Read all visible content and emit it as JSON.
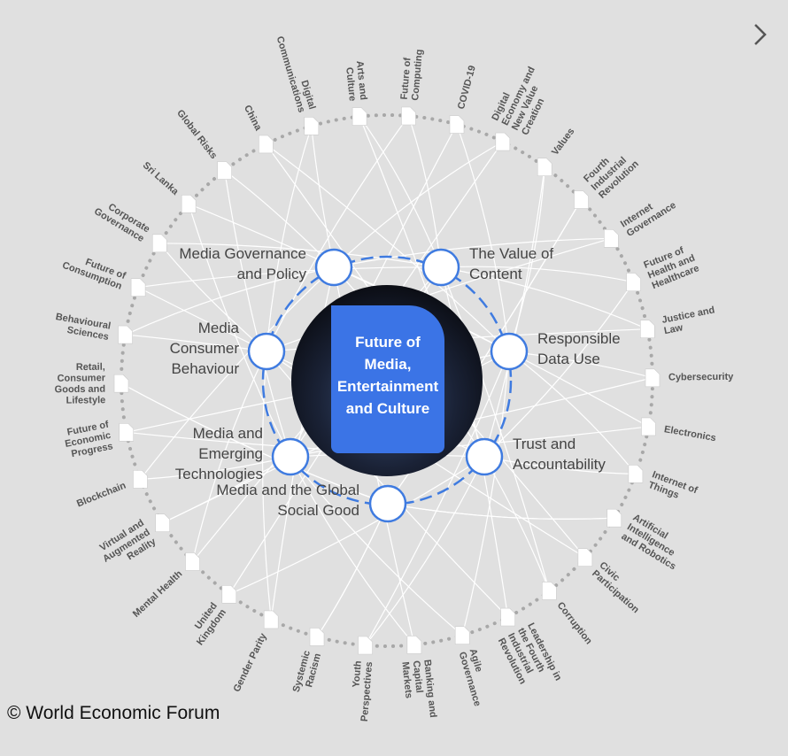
{
  "center": {
    "lines": [
      "Future of",
      "Media,",
      "Entertainment",
      "and Culture"
    ]
  },
  "key_issues": [
    {
      "lines": [
        "Media Governance",
        "and Policy"
      ]
    },
    {
      "lines": [
        "The Value of",
        "Content"
      ]
    },
    {
      "lines": [
        "Media",
        "Consumer",
        "Behaviour"
      ]
    },
    {
      "lines": [
        "Responsible",
        "Data Use"
      ]
    },
    {
      "lines": [
        "Media and",
        "Emerging",
        "Technologies"
      ]
    },
    {
      "lines": [
        "Trust and",
        "Accountability"
      ]
    },
    {
      "lines": [
        "Media and the Global",
        "Social Good"
      ]
    }
  ],
  "topics": [
    {
      "lines": [
        "Digital",
        "Communications"
      ]
    },
    {
      "lines": [
        "Arts and",
        "Culture"
      ]
    },
    {
      "lines": [
        "Future of",
        "Computing"
      ]
    },
    {
      "lines": [
        "COVID-19"
      ]
    },
    {
      "lines": [
        "Digital",
        "Economy and",
        "New Value",
        "Creation"
      ]
    },
    {
      "lines": [
        "Values"
      ]
    },
    {
      "lines": [
        "Fourth",
        "Industrial",
        "Revolution"
      ]
    },
    {
      "lines": [
        "Internet",
        "Governance"
      ]
    },
    {
      "lines": [
        "Future of",
        "Health and",
        "Healthcare"
      ]
    },
    {
      "lines": [
        "Justice and",
        "Law"
      ]
    },
    {
      "lines": [
        "Cybersecurity"
      ]
    },
    {
      "lines": [
        "Electronics"
      ]
    },
    {
      "lines": [
        "Internet of",
        "Things"
      ]
    },
    {
      "lines": [
        "Artificial",
        "Intelligence",
        "and Robotics"
      ]
    },
    {
      "lines": [
        "Civic",
        "Participation"
      ]
    },
    {
      "lines": [
        "Corruption"
      ]
    },
    {
      "lines": [
        "Leadership in",
        "the Fourth",
        "Industrial",
        "Revolution"
      ]
    },
    {
      "lines": [
        "Agile",
        "Governance"
      ]
    },
    {
      "lines": [
        "Banking and",
        "Capital",
        "Markets"
      ]
    },
    {
      "lines": [
        "Youth",
        "Perspectives"
      ]
    },
    {
      "lines": [
        "Systemic",
        "Racism"
      ]
    },
    {
      "lines": [
        "Gender Parity"
      ]
    },
    {
      "lines": [
        "United",
        "Kingdom"
      ]
    },
    {
      "lines": [
        "Mental Health"
      ]
    },
    {
      "lines": [
        "Virtual and",
        "Augmented",
        "Reality"
      ]
    },
    {
      "lines": [
        "Blockchain"
      ]
    },
    {
      "lines": [
        "Future of",
        "Economic",
        "Progress"
      ]
    },
    {
      "lines": [
        "Retail,",
        "Consumer",
        "Goods and",
        "Lifestyle"
      ]
    },
    {
      "lines": [
        "Behavioural",
        "Sciences"
      ]
    },
    {
      "lines": [
        "Future of",
        "Consumption"
      ]
    },
    {
      "lines": [
        "Corporate",
        "Governance"
      ]
    },
    {
      "lines": [
        "Sri Lanka"
      ]
    },
    {
      "lines": [
        "Global Risks"
      ]
    },
    {
      "lines": [
        "China"
      ]
    }
  ],
  "copyright": "© World Economic Forum"
}
